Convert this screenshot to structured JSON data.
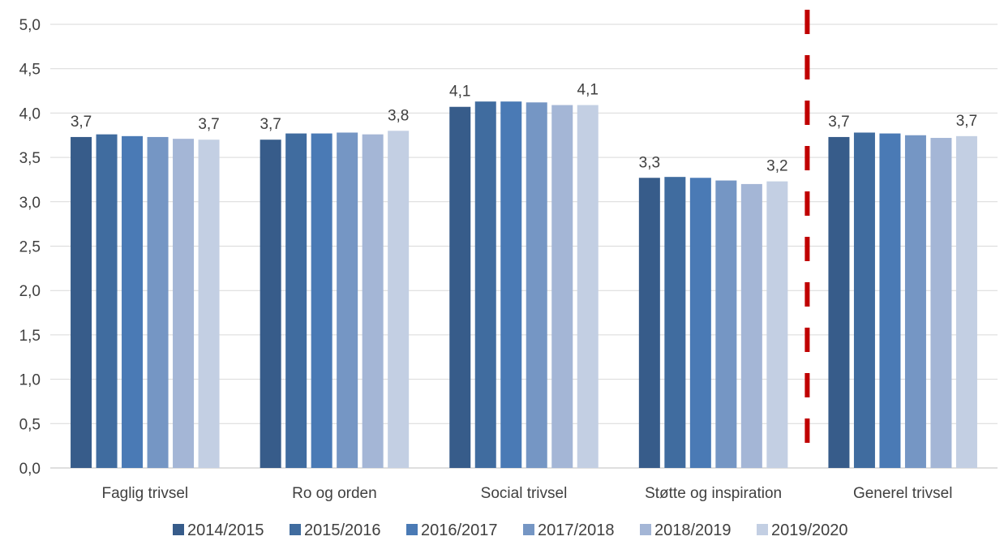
{
  "chart_data": {
    "type": "bar",
    "categories": [
      "Faglig trivsel",
      "Ro og orden",
      "Social trivsel",
      "Støtte og inspiration",
      "Generel trivsel"
    ],
    "series": [
      {
        "name": "2014/2015",
        "color": "#375c8a",
        "values": [
          3.73,
          3.7,
          4.07,
          3.27,
          3.73
        ]
      },
      {
        "name": "2015/2016",
        "color": "#406c9f",
        "values": [
          3.76,
          3.77,
          4.13,
          3.28,
          3.78
        ]
      },
      {
        "name": "2016/2017",
        "color": "#4a7ab5",
        "values": [
          3.74,
          3.77,
          4.13,
          3.27,
          3.77
        ]
      },
      {
        "name": "2017/2018",
        "color": "#7596c4",
        "values": [
          3.73,
          3.78,
          4.12,
          3.24,
          3.75
        ]
      },
      {
        "name": "2018/2019",
        "color": "#a4b6d6",
        "values": [
          3.71,
          3.76,
          4.09,
          3.2,
          3.72
        ]
      },
      {
        "name": "2019/2020",
        "color": "#c3cfe3",
        "values": [
          3.7,
          3.8,
          4.09,
          3.23,
          3.74
        ]
      }
    ],
    "data_labels": [
      {
        "category": 0,
        "series": 0,
        "text": "3,7"
      },
      {
        "category": 0,
        "series": 5,
        "text": "3,7"
      },
      {
        "category": 1,
        "series": 0,
        "text": "3,7"
      },
      {
        "category": 1,
        "series": 5,
        "text": "3,8"
      },
      {
        "category": 2,
        "series": 0,
        "text": "4,1"
      },
      {
        "category": 2,
        "series": 5,
        "text": "4,1"
      },
      {
        "category": 3,
        "series": 0,
        "text": "3,3"
      },
      {
        "category": 3,
        "series": 5,
        "text": "3,2"
      },
      {
        "category": 4,
        "series": 0,
        "text": "3,7"
      },
      {
        "category": 4,
        "series": 5,
        "text": "3,7"
      }
    ],
    "y_ticks": [
      "0,0",
      "0,5",
      "1,0",
      "1,5",
      "2,0",
      "2,5",
      "3,0",
      "3,5",
      "4,0",
      "4,5",
      "5,0"
    ],
    "ylim": [
      0,
      5
    ],
    "grid": true,
    "legend_position": "bottom",
    "separator": {
      "after_category": 3,
      "color": "#c00000",
      "style": "dashed"
    }
  }
}
